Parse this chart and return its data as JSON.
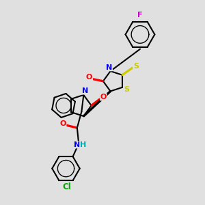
{
  "background_color": "#e0e0e0",
  "atom_colors": {
    "C": "#000000",
    "N": "#0000ee",
    "O": "#ff0000",
    "S": "#cccc00",
    "F": "#cc00cc",
    "Cl": "#00aa00",
    "H": "#00aaaa"
  },
  "bond_color": "#000000",
  "bond_width": 1.5,
  "figsize": [
    3.0,
    3.0
  ],
  "dpi": 100
}
